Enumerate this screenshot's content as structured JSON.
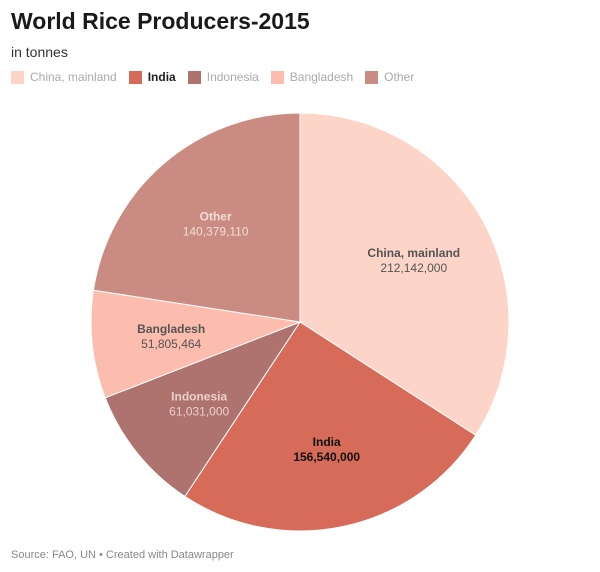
{
  "title": "World Rice Producers-2015",
  "subtitle": "in tonnes",
  "footer": "Source: FAO, UN • Created with Datawrapper",
  "chart_data": {
    "type": "pie",
    "title": "World Rice Producers-2015",
    "unit": "tonnes",
    "legend_position": "top-left",
    "slices": [
      {
        "label": "China, mainland",
        "value": 212142000,
        "value_label": "212,142,000",
        "color": "#fdd5c8",
        "text_color": "#555555"
      },
      {
        "label": "India",
        "value": 156540000,
        "value_label": "156,540,000",
        "color": "#d56b58",
        "text_color": "#111111",
        "highlight": true
      },
      {
        "label": "Indonesia",
        "value": 61031000,
        "value_label": "61,031,000",
        "color": "#ae736e",
        "text_color": "#ead0cc"
      },
      {
        "label": "Bangladesh",
        "value": 51805464,
        "value_label": "51,805,464",
        "color": "#fcbcae",
        "text_color": "#555555"
      },
      {
        "label": "Other",
        "value": 140379110,
        "value_label": "140,379,110",
        "color": "#ca8c82",
        "text_color": "#f1dcd8"
      }
    ]
  }
}
